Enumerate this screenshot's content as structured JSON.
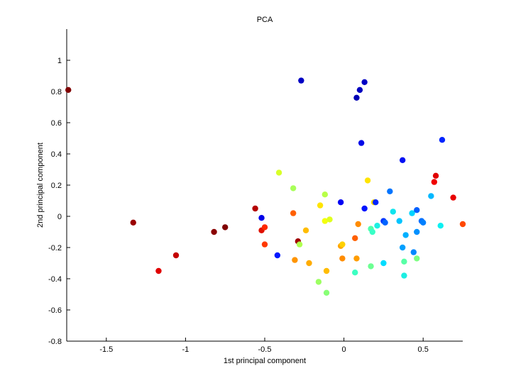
{
  "chart_data": {
    "type": "scatter",
    "title": "PCA",
    "xlabel": "1st principal component",
    "ylabel": "2nd principal component",
    "xlim": [
      -1.75,
      0.75
    ],
    "ylim": [
      -0.8,
      1.2
    ],
    "xticks": [
      -1.5,
      -1,
      -0.5,
      0,
      0.5
    ],
    "yticks": [
      -0.8,
      -0.6,
      -0.4,
      -0.2,
      0,
      0.2,
      0.4,
      0.6,
      0.8,
      1
    ],
    "xtick_labels": [
      "-1.5",
      "-1",
      "-0.5",
      "0",
      "0.5"
    ],
    "ytick_labels": [
      "-0.8",
      "-0.6",
      "-0.4",
      "-0.2",
      "0",
      "0.2",
      "0.4",
      "0.6",
      "0.8",
      "1"
    ],
    "grid": false,
    "colormap": "jet",
    "points": [
      {
        "x": -1.74,
        "y": 0.81,
        "color": "#800000"
      },
      {
        "x": -1.33,
        "y": -0.04,
        "color": "#9a0000"
      },
      {
        "x": -1.17,
        "y": -0.35,
        "color": "#e00000"
      },
      {
        "x": -1.06,
        "y": -0.25,
        "color": "#c40000"
      },
      {
        "x": -0.82,
        "y": -0.1,
        "color": "#8a0000"
      },
      {
        "x": -0.75,
        "y": -0.07,
        "color": "#800000"
      },
      {
        "x": -0.56,
        "y": 0.05,
        "color": "#b40000"
      },
      {
        "x": -0.52,
        "y": -0.01,
        "color": "#0000e8"
      },
      {
        "x": -0.52,
        "y": -0.09,
        "color": "#e01000"
      },
      {
        "x": -0.5,
        "y": -0.07,
        "color": "#ff2800"
      },
      {
        "x": -0.5,
        "y": -0.18,
        "color": "#ff3800"
      },
      {
        "x": -0.42,
        "y": -0.25,
        "color": "#0018ff"
      },
      {
        "x": -0.41,
        "y": 0.28,
        "color": "#d8ff28"
      },
      {
        "x": -0.32,
        "y": 0.18,
        "color": "#a8ff58"
      },
      {
        "x": -0.32,
        "y": 0.02,
        "color": "#ff6000"
      },
      {
        "x": -0.31,
        "y": -0.28,
        "color": "#ff9400"
      },
      {
        "x": -0.29,
        "y": -0.16,
        "color": "#a00000"
      },
      {
        "x": -0.28,
        "y": -0.18,
        "color": "#b0ff50"
      },
      {
        "x": -0.27,
        "y": 0.87,
        "color": "#0000c4"
      },
      {
        "x": -0.24,
        "y": -0.09,
        "color": "#ffbc00"
      },
      {
        "x": -0.22,
        "y": -0.3,
        "color": "#ffac00"
      },
      {
        "x": -0.16,
        "y": -0.42,
        "color": "#9cff62"
      },
      {
        "x": -0.15,
        "y": 0.07,
        "color": "#ffe400"
      },
      {
        "x": -0.12,
        "y": 0.14,
        "color": "#b8ff48"
      },
      {
        "x": -0.12,
        "y": -0.03,
        "color": "#f4ff0c"
      },
      {
        "x": -0.11,
        "y": -0.35,
        "color": "#ffbc00"
      },
      {
        "x": -0.11,
        "y": -0.49,
        "color": "#88ff76"
      },
      {
        "x": -0.09,
        "y": -0.02,
        "color": "#e0ff1e"
      },
      {
        "x": -0.02,
        "y": 0.09,
        "color": "#0000f4"
      },
      {
        "x": -0.02,
        "y": -0.19,
        "color": "#ffa400"
      },
      {
        "x": -0.01,
        "y": -0.18,
        "color": "#ffd000"
      },
      {
        "x": -0.01,
        "y": -0.27,
        "color": "#ff8c00"
      },
      {
        "x": 0.07,
        "y": -0.14,
        "color": "#ff6000"
      },
      {
        "x": 0.07,
        "y": -0.36,
        "color": "#3cffc2"
      },
      {
        "x": 0.08,
        "y": -0.27,
        "color": "#ff9c00"
      },
      {
        "x": 0.08,
        "y": 0.76,
        "color": "#0000b4"
      },
      {
        "x": 0.09,
        "y": -0.05,
        "color": "#ff8c00"
      },
      {
        "x": 0.1,
        "y": 0.81,
        "color": "#0000c0"
      },
      {
        "x": 0.11,
        "y": 0.47,
        "color": "#0008e8"
      },
      {
        "x": 0.13,
        "y": 0.86,
        "color": "#0000c4"
      },
      {
        "x": 0.13,
        "y": 0.05,
        "color": "#0014ff"
      },
      {
        "x": 0.15,
        "y": 0.23,
        "color": "#ffe400"
      },
      {
        "x": 0.17,
        "y": -0.08,
        "color": "#50ffac"
      },
      {
        "x": 0.17,
        "y": -0.32,
        "color": "#6cff92"
      },
      {
        "x": 0.18,
        "y": -0.1,
        "color": "#38ffc6"
      },
      {
        "x": 0.19,
        "y": 0.09,
        "color": "#ffd800"
      },
      {
        "x": 0.2,
        "y": 0.09,
        "color": "#0024ff"
      },
      {
        "x": 0.21,
        "y": -0.06,
        "color": "#1cf0e2"
      },
      {
        "x": 0.25,
        "y": -0.3,
        "color": "#00dcff"
      },
      {
        "x": 0.25,
        "y": -0.03,
        "color": "#0034ff"
      },
      {
        "x": 0.26,
        "y": -0.04,
        "color": "#0064ff"
      },
      {
        "x": 0.29,
        "y": 0.16,
        "color": "#0074ff"
      },
      {
        "x": 0.31,
        "y": 0.03,
        "color": "#10e4ee"
      },
      {
        "x": 0.35,
        "y": -0.03,
        "color": "#00c4ff"
      },
      {
        "x": 0.37,
        "y": 0.36,
        "color": "#0010f4"
      },
      {
        "x": 0.37,
        "y": -0.2,
        "color": "#00a0ff"
      },
      {
        "x": 0.38,
        "y": -0.29,
        "color": "#58ffa6"
      },
      {
        "x": 0.38,
        "y": -0.38,
        "color": "#1ceee2"
      },
      {
        "x": 0.39,
        "y": -0.12,
        "color": "#00b0ff"
      },
      {
        "x": 0.43,
        "y": 0.02,
        "color": "#00d4ff"
      },
      {
        "x": 0.44,
        "y": -0.23,
        "color": "#0088ff"
      },
      {
        "x": 0.46,
        "y": 0.04,
        "color": "#0060ff"
      },
      {
        "x": 0.46,
        "y": -0.27,
        "color": "#7cff82"
      },
      {
        "x": 0.46,
        "y": -0.1,
        "color": "#0090ff"
      },
      {
        "x": 0.49,
        "y": -0.03,
        "color": "#0070ff"
      },
      {
        "x": 0.5,
        "y": -0.04,
        "color": "#0080ff"
      },
      {
        "x": 0.55,
        "y": 0.13,
        "color": "#00b8ff"
      },
      {
        "x": 0.57,
        "y": 0.22,
        "color": "#f00000"
      },
      {
        "x": 0.58,
        "y": 0.26,
        "color": "#e00000"
      },
      {
        "x": 0.61,
        "y": -0.06,
        "color": "#0cf0f2"
      },
      {
        "x": 0.62,
        "y": 0.49,
        "color": "#0024ff"
      },
      {
        "x": 0.69,
        "y": 0.12,
        "color": "#e80000"
      },
      {
        "x": 0.75,
        "y": -0.05,
        "color": "#ff4800"
      }
    ]
  }
}
